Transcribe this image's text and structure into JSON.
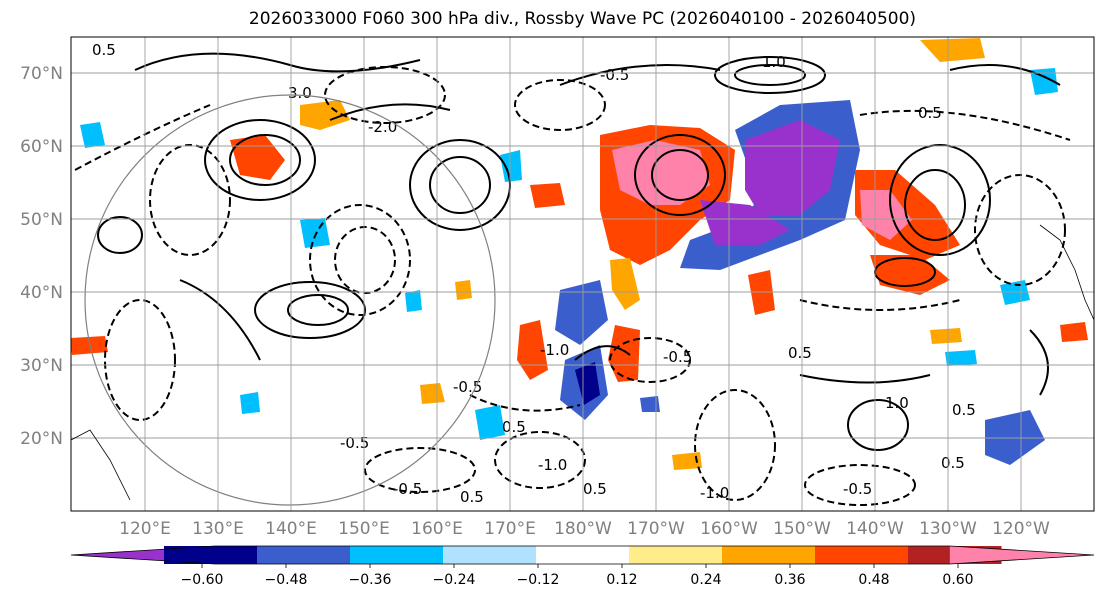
{
  "title": "2026033000 F060 300 hPa div., Rossby Wave PC (2026040100 - 2026040500)",
  "map": {
    "lat_labels": [
      "70°N",
      "60°N",
      "50°N",
      "40°N",
      "30°N",
      "20°N"
    ],
    "lon_labels": [
      "120°E",
      "130°E",
      "140°E",
      "150°E",
      "160°E",
      "170°E",
      "180°W",
      "170°W",
      "160°W",
      "150°W",
      "140°W",
      "130°W",
      "120°W"
    ],
    "contour_labels": [
      "0.5",
      "-0.5",
      "3.0",
      "-2.0",
      "1.0",
      "-1.0",
      "-0.5",
      "0.5",
      "-0.5",
      "0.5",
      "-0.5",
      "-1.0",
      "0.5",
      "-0.5",
      "1.0",
      "0.5",
      "0.5",
      "-0.5",
      "0.5",
      "-1.0",
      "0.5"
    ]
  },
  "colorbar": {
    "colors": [
      "#9932cc",
      "#00008b",
      "#3a5fcd",
      "#00bfff",
      "#b0e2ff",
      "#ffffff",
      "#ffec8b",
      "#ffa500",
      "#ff4500",
      "#b22222",
      "#ff82ab"
    ],
    "tick_labels": [
      "−0.60",
      "−0.48",
      "−0.36",
      "−0.24",
      "−0.12",
      "0.12",
      "0.24",
      "0.36",
      "0.48",
      "0.60"
    ]
  }
}
